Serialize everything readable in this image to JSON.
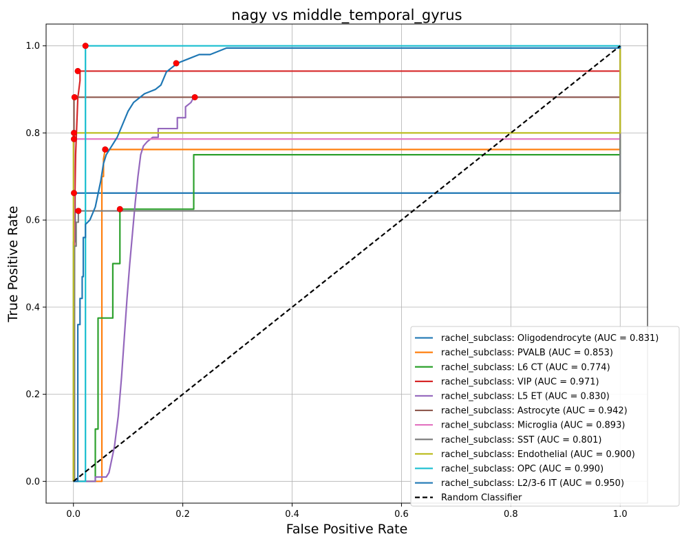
{
  "chart_data": {
    "type": "line",
    "title": "nagy vs middle_temporal_gyrus",
    "xlabel": "False Positive Rate",
    "ylabel": "True Positive Rate",
    "xlim": [
      -0.05,
      1.05
    ],
    "ylim": [
      -0.05,
      1.05
    ],
    "x_ticks": [
      0.0,
      0.2,
      0.4,
      0.6,
      0.8,
      1.0
    ],
    "y_ticks": [
      0.0,
      0.2,
      0.4,
      0.6,
      0.8,
      1.0
    ],
    "x_tick_labels": [
      "0.0",
      "0.2",
      "0.4",
      "0.6",
      "0.8",
      "1.0"
    ],
    "y_tick_labels": [
      "0.0",
      "0.2",
      "0.4",
      "0.6",
      "0.8",
      "1.0"
    ],
    "grid": true,
    "legend_position": "lower-right",
    "series": [
      {
        "name": "rachel_subclass: Oligodendrocyte (AUC = 0.831)",
        "color": "#1f77b4",
        "x": [
          0,
          0,
          0.003,
          0.003,
          1,
          1
        ],
        "y": [
          0,
          0.55,
          0.55,
          0.662,
          0.662,
          1
        ],
        "optimal_point": [
          0.001,
          0.662
        ]
      },
      {
        "name": "rachel_subclass: PVALB (AUC = 0.853)",
        "color": "#ff7f0e",
        "x": [
          0,
          0.05,
          0.052,
          0.052,
          0.055,
          0.055,
          0.058,
          1,
          1
        ],
        "y": [
          0,
          0,
          0.0,
          0.7,
          0.7,
          0.74,
          0.762,
          0.762,
          1
        ],
        "optimal_point": [
          0.058,
          0.762
        ]
      },
      {
        "name": "rachel_subclass: L6 CT (AUC = 0.774)",
        "color": "#2ca02c",
        "x": [
          0,
          0.04,
          0.04,
          0.045,
          0.045,
          0.072,
          0.072,
          0.085,
          0.085,
          0.22,
          0.22,
          1,
          1
        ],
        "y": [
          0,
          0,
          0.12,
          0.12,
          0.375,
          0.375,
          0.5,
          0.5,
          0.625,
          0.625,
          0.75,
          0.75,
          1
        ],
        "optimal_point": [
          0.085,
          0.625
        ]
      },
      {
        "name": "rachel_subclass: VIP (AUC = 0.971)",
        "color": "#d62728",
        "x": [
          0,
          0.002,
          0.002,
          0.004,
          0.004,
          0.008,
          0.008,
          0.012,
          0.012,
          1,
          1
        ],
        "y": [
          0,
          0.6,
          0.6,
          0.75,
          0.75,
          0.88,
          0.88,
          0.92,
          0.942,
          0.942,
          1
        ],
        "optimal_point": [
          0.008,
          0.942
        ]
      },
      {
        "name": "rachel_subclass: L5 ET (AUC = 0.830)",
        "color": "#9467bd",
        "x": [
          0,
          0.04,
          0.04,
          0.06,
          0.065,
          0.075,
          0.082,
          0.088,
          0.093,
          0.098,
          0.103,
          0.108,
          0.113,
          0.118,
          0.123,
          0.128,
          0.135,
          0.145,
          0.155,
          0.155,
          0.19,
          0.19,
          0.205,
          0.205,
          0.215,
          0.22,
          1,
          1
        ],
        "y": [
          0,
          0,
          0.01,
          0.01,
          0.02,
          0.08,
          0.15,
          0.24,
          0.33,
          0.42,
          0.5,
          0.57,
          0.64,
          0.7,
          0.75,
          0.77,
          0.78,
          0.79,
          0.79,
          0.81,
          0.81,
          0.835,
          0.835,
          0.86,
          0.87,
          0.882,
          0.882,
          1
        ],
        "optimal_point": [
          0.222,
          0.882
        ]
      },
      {
        "name": "rachel_subclass: Astrocyte (AUC = 0.942)",
        "color": "#8c564b",
        "x": [
          0,
          0.001,
          0.001,
          0.003,
          1,
          1
        ],
        "y": [
          0,
          0.75,
          0.88,
          0.882,
          0.882,
          1
        ],
        "optimal_point": [
          0.002,
          0.882
        ]
      },
      {
        "name": "rachel_subclass: Microglia (AUC = 0.893)",
        "color": "#e377c2",
        "x": [
          0,
          0.001,
          0.001,
          1,
          1
        ],
        "y": [
          0,
          0.0,
          0.786,
          0.786,
          1
        ],
        "optimal_point": [
          0.001,
          0.786
        ]
      },
      {
        "name": "rachel_subclass: SST (AUC = 0.801)",
        "color": "#7f7f7f",
        "x": [
          0,
          0.002,
          0.002,
          0.005,
          0.005,
          0.009,
          0.009,
          1,
          1
        ],
        "y": [
          0,
          0,
          0.54,
          0.54,
          0.595,
          0.595,
          0.621,
          0.621,
          1
        ],
        "optimal_point": [
          0.009,
          0.621
        ]
      },
      {
        "name": "rachel_subclass: Endothelial (AUC = 0.900)",
        "color": "#bcbd22",
        "x": [
          0,
          0.0,
          0.001,
          1,
          1
        ],
        "y": [
          0,
          0.8,
          0.8,
          0.8,
          1
        ],
        "optimal_point": [
          0.001,
          0.8
        ]
      },
      {
        "name": "rachel_subclass: OPC (AUC = 0.990)",
        "color": "#17becf",
        "x": [
          0,
          0.022,
          0.022,
          1,
          1
        ],
        "y": [
          0,
          0,
          1.0,
          1.0,
          1
        ],
        "optimal_point": [
          0.022,
          1.0
        ]
      },
      {
        "name": "rachel_subclass: L2/3-6 IT (AUC = 0.950)",
        "color": "#1f77b4",
        "x": [
          0,
          0.008,
          0.008,
          0.012,
          0.012,
          0.016,
          0.016,
          0.018,
          0.018,
          0.022,
          0.022,
          0.03,
          0.04,
          0.045,
          0.05,
          0.055,
          0.06,
          0.07,
          0.08,
          0.09,
          0.1,
          0.11,
          0.12,
          0.13,
          0.14,
          0.15,
          0.16,
          0.17,
          0.19,
          0.21,
          0.23,
          0.25,
          0.28,
          0.3,
          1,
          1
        ],
        "y": [
          0,
          0,
          0.36,
          0.36,
          0.42,
          0.42,
          0.47,
          0.47,
          0.56,
          0.56,
          0.59,
          0.6,
          0.63,
          0.66,
          0.69,
          0.73,
          0.75,
          0.77,
          0.79,
          0.82,
          0.85,
          0.87,
          0.88,
          0.89,
          0.895,
          0.9,
          0.91,
          0.94,
          0.96,
          0.97,
          0.98,
          0.98,
          0.995,
          0.995,
          0.995,
          1
        ],
        "optimal_point": [
          0.188,
          0.96
        ]
      },
      {
        "name": "Random Classifier",
        "color": "#000000",
        "dashed": true,
        "x": [
          0,
          1
        ],
        "y": [
          0,
          1
        ]
      }
    ],
    "optimal_marker_color": "#ff0000"
  }
}
